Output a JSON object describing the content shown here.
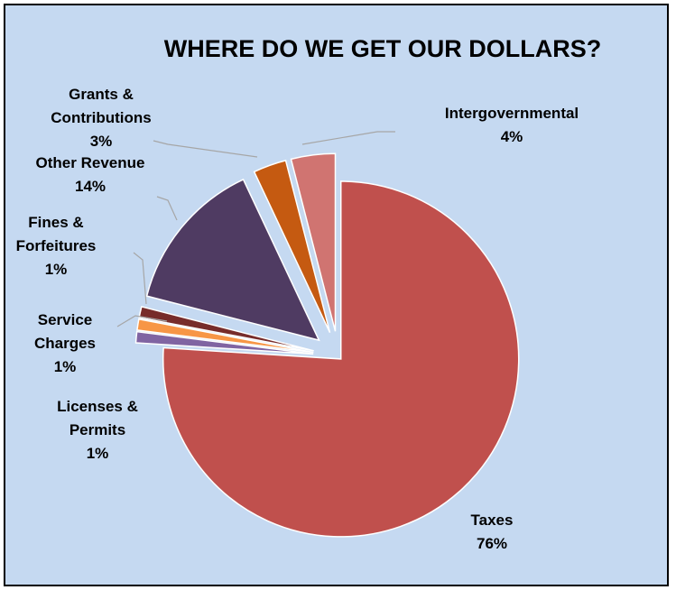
{
  "chart_data": {
    "type": "pie",
    "title": "WHERE DO WE GET OUR DOLLARS?",
    "slices": [
      {
        "name": "Taxes",
        "value": 76,
        "label": "76%",
        "color": "#c0504d"
      },
      {
        "name": "Licenses & Permits",
        "value": 1,
        "label": "1%",
        "color": "#8064a2"
      },
      {
        "name": "Service Charges",
        "value": 1,
        "label": "1%",
        "color": "#f79646"
      },
      {
        "name": "Fines & Forfeitures",
        "value": 1,
        "label": "1%",
        "color": "#772c2a"
      },
      {
        "name": "Other Revenue",
        "value": 14,
        "label": "14%",
        "color": "#4f3b62"
      },
      {
        "name": "Grants & Contributions",
        "value": 3,
        "label": "3%",
        "color": "#c55a11"
      },
      {
        "name": "Intergovernmental",
        "value": 4,
        "label": "4%",
        "color": "#d07471"
      }
    ],
    "background_color": "#c5d9f1",
    "legend": "none"
  }
}
